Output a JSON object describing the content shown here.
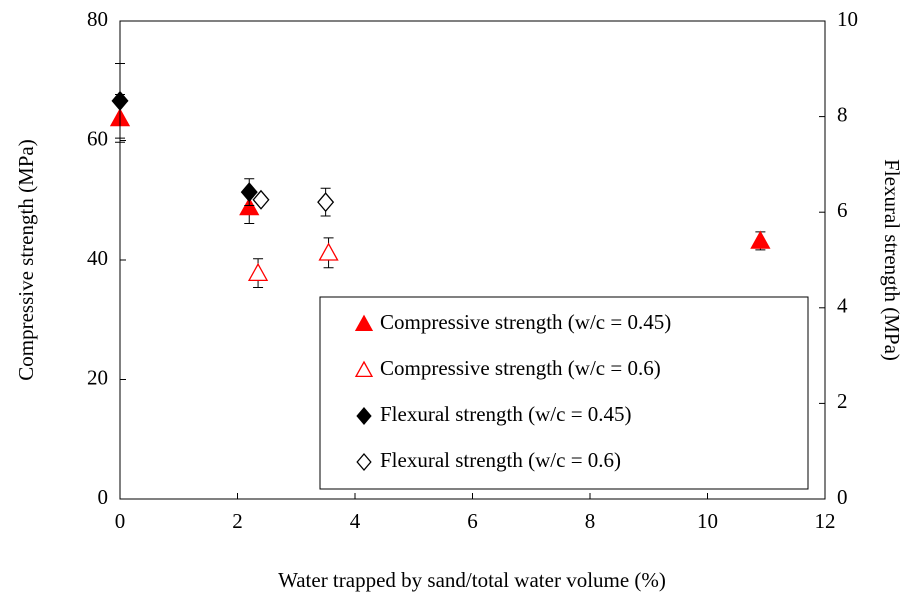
{
  "chart_data": {
    "type": "scatter",
    "x_label": "Water trapped by sand/total water volume (%)",
    "y_label": "Compressive strength (MPa)",
    "y2_label": "Flexural strength (MPa)",
    "xlim": [
      0,
      12
    ],
    "xticks": [
      0,
      2,
      4,
      6,
      8,
      10,
      12
    ],
    "ylim": [
      0,
      80
    ],
    "yticks": [
      0,
      20,
      40,
      60,
      80
    ],
    "y2lim": [
      0,
      10
    ],
    "y2ticks": [
      0,
      2,
      4,
      6,
      8,
      10
    ],
    "legend": "lower right",
    "series": [
      {
        "name": "Compressive strength (w/c = 0.45)",
        "color": "#ff0000",
        "marker": "triangle",
        "fill": "filled",
        "axis": "y",
        "x": [
          0,
          2.2,
          10.9
        ],
        "values": [
          63.7,
          48.8,
          43.2
        ],
        "errors": [
          4,
          2.7,
          1.5
        ]
      },
      {
        "name": "Compressive strength (w/c = 0.6)",
        "color": "#ff0000",
        "marker": "triangle",
        "fill": "open",
        "axis": "y",
        "x": [
          2.35,
          3.55
        ],
        "values": [
          37.8,
          41.2
        ],
        "errors": [
          2.4,
          2.5
        ]
      },
      {
        "name": "Flexural strength (w/c = 0.45)",
        "color": "#000000",
        "marker": "diamond",
        "fill": "filled",
        "axis": "y2",
        "x": [
          0,
          2.2
        ],
        "values": [
          8.33,
          6.42
        ],
        "errors": [
          0.78,
          0.28
        ]
      },
      {
        "name": "Flexural strength (w/c = 0.6)",
        "color": "#000000",
        "marker": "diamond",
        "fill": "open",
        "axis": "y2",
        "x": [
          2.4,
          3.5
        ],
        "values": [
          6.26,
          6.21
        ],
        "errors": [
          0.05,
          0.29
        ]
      }
    ]
  }
}
